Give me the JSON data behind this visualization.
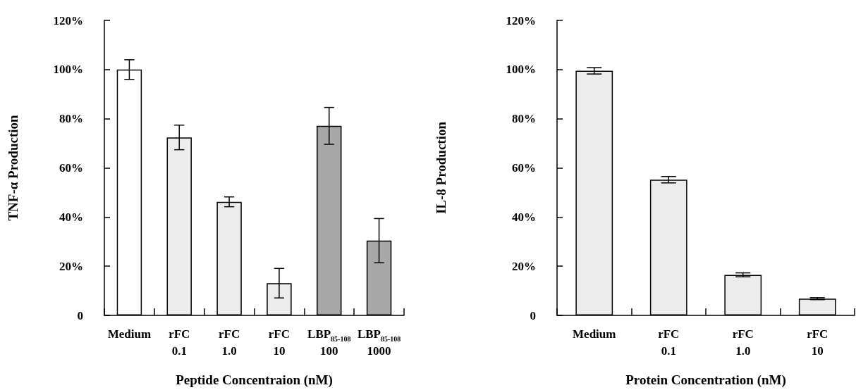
{
  "chart_data": [
    {
      "type": "bar",
      "xlabel": "Peptide Concentraion (nM)",
      "ylabel": "TNF-α Production",
      "categories": [
        "Medium",
        "rFC\n0.1",
        "rFC\n1.0",
        "rFC\n10",
        "LBP$_{85-108}$\n100",
        "LBP$_{85-108}$\n1000"
      ],
      "values": [
        100,
        72.4,
        46.2,
        13.1,
        77.1,
        30.4
      ],
      "errors": [
        4,
        5,
        2,
        6,
        7.5,
        9
      ],
      "colors": [
        "#ffffff",
        "#ececec",
        "#ececec",
        "#ececec",
        "#a8a8a8",
        "#a8a8a8"
      ],
      "ylim": [
        0,
        120
      ],
      "yticks": [
        0,
        {
          "value": 20,
          "label": "20%"
        },
        {
          "value": 40,
          "label": "40%"
        },
        {
          "value": 60,
          "label": "60%"
        },
        {
          "value": 80,
          "label": "80%"
        },
        {
          "value": 100,
          "label": "100%"
        },
        {
          "value": 120,
          "label": "120%"
        }
      ],
      "grid": false
    },
    {
      "type": "bar",
      "xlabel": "Protein Concentration (nM)",
      "ylabel": "IL-8 Production",
      "categories": [
        "Medium",
        "rFC\n0.1",
        "rFC\n1.0",
        "rFC\n10"
      ],
      "values": [
        99.5,
        55.2,
        16.5,
        6.8
      ],
      "errors": [
        1.3,
        1.3,
        0.8,
        0.4
      ],
      "colors": [
        "#ececec",
        "#ececec",
        "#ececec",
        "#ececec"
      ],
      "ylim": [
        0,
        120
      ],
      "yticks": [
        0,
        {
          "value": 20,
          "label": "20%"
        },
        {
          "value": 40,
          "label": "40%"
        },
        {
          "value": 60,
          "label": "60%"
        },
        {
          "value": 80,
          "label": "80%"
        },
        {
          "value": 100,
          "label": "100%"
        },
        {
          "value": 120,
          "label": "120%"
        }
      ],
      "grid": false
    }
  ]
}
